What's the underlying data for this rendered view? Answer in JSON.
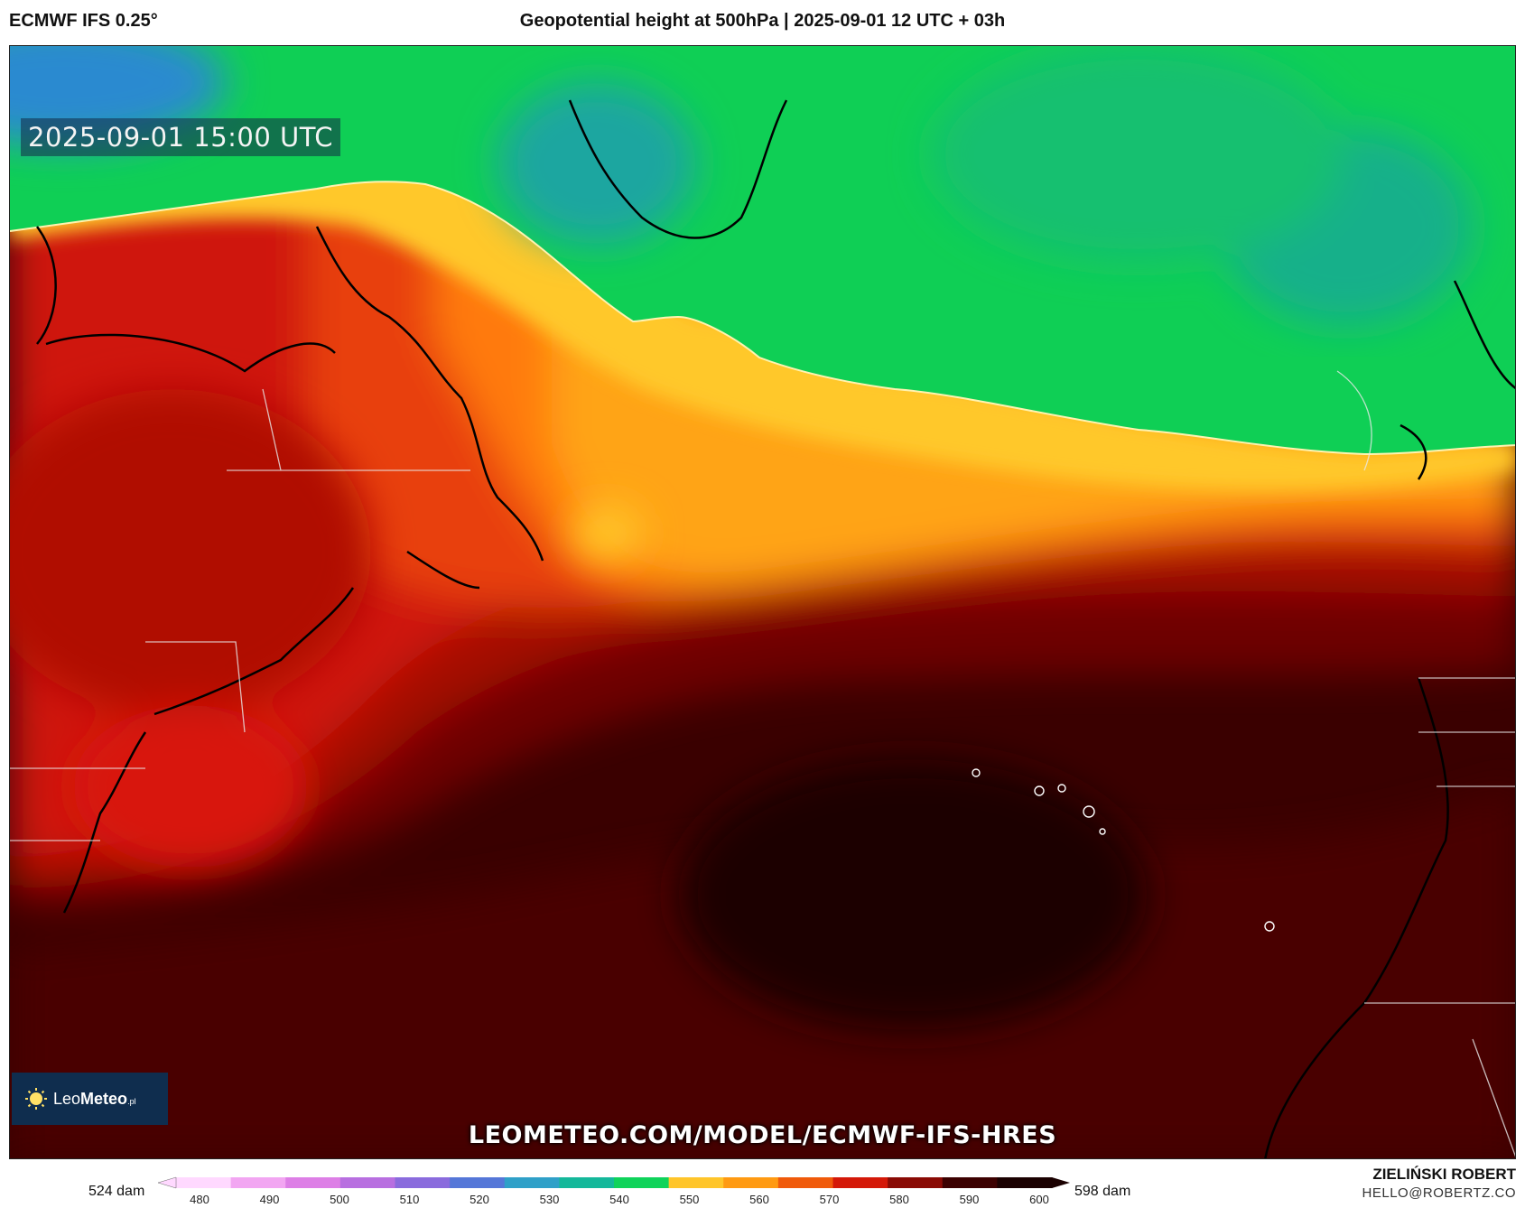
{
  "header": {
    "model": "ECMWF IFS 0.25°",
    "title": "Geopotential height at 500hPa | 2025-09-01 12 UTC + 03h"
  },
  "map": {
    "valid_time": "2025-09-01 15:00 UTC",
    "watermark": "LEOMETEO.COM/MODEL/ECMWF-IFS-HRES",
    "logo_text_light": "Leo",
    "logo_text_bold": "Meteo",
    "logo_suffix": ".pl"
  },
  "legend": {
    "min_label": "524 dam",
    "max_label": "598 dam",
    "ticks": [
      "480",
      "490",
      "500",
      "510",
      "520",
      "530",
      "540",
      "550",
      "560",
      "570",
      "580",
      "590",
      "600"
    ],
    "colors": [
      "#ffd9ff",
      "#f2a6f2",
      "#dd7fe6",
      "#b86fe0",
      "#8a6bdd",
      "#5577d8",
      "#2fa0c8",
      "#14b89a",
      "#0fd35a",
      "#ffc52a",
      "#ff9a12",
      "#f05a0a",
      "#d41808",
      "#8a0a04",
      "#3c0000",
      "#1a0000"
    ]
  },
  "author": {
    "name": "ZIELIŃSKI ROBERT",
    "email": "HELLO@ROBERTZ.CO"
  }
}
